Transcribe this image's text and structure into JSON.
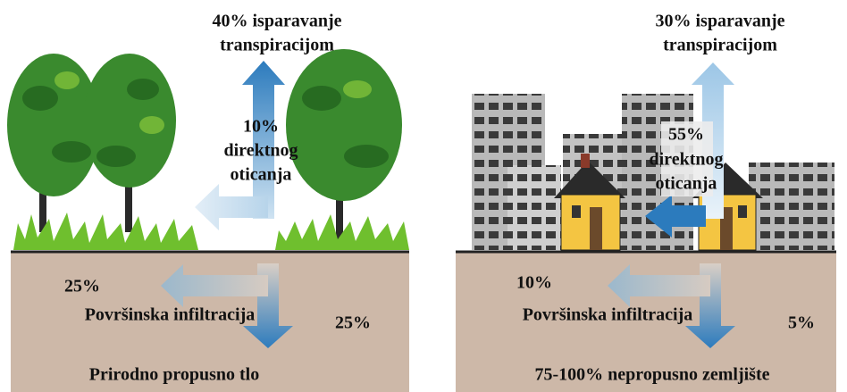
{
  "panels": [
    {
      "evaporation": [
        "40% isparavanje",
        "transpiracijom"
      ],
      "runoff": [
        "10%",
        "direktnog",
        "oticanja"
      ],
      "shallow_percent": "25%",
      "shallow_label": "Površinska infiltracija",
      "deep_percent": "25%",
      "ground_label": "Prirodno propusno tlo"
    },
    {
      "evaporation": [
        "30% isparavanje",
        "transpiracijom"
      ],
      "runoff": [
        "55%",
        "direktnog",
        "oticanja"
      ],
      "shallow_percent": "10%",
      "shallow_label": "Površinska infiltracija",
      "deep_percent": "5%",
      "ground_label": "75-100% nepropusno zemljište"
    }
  ]
}
